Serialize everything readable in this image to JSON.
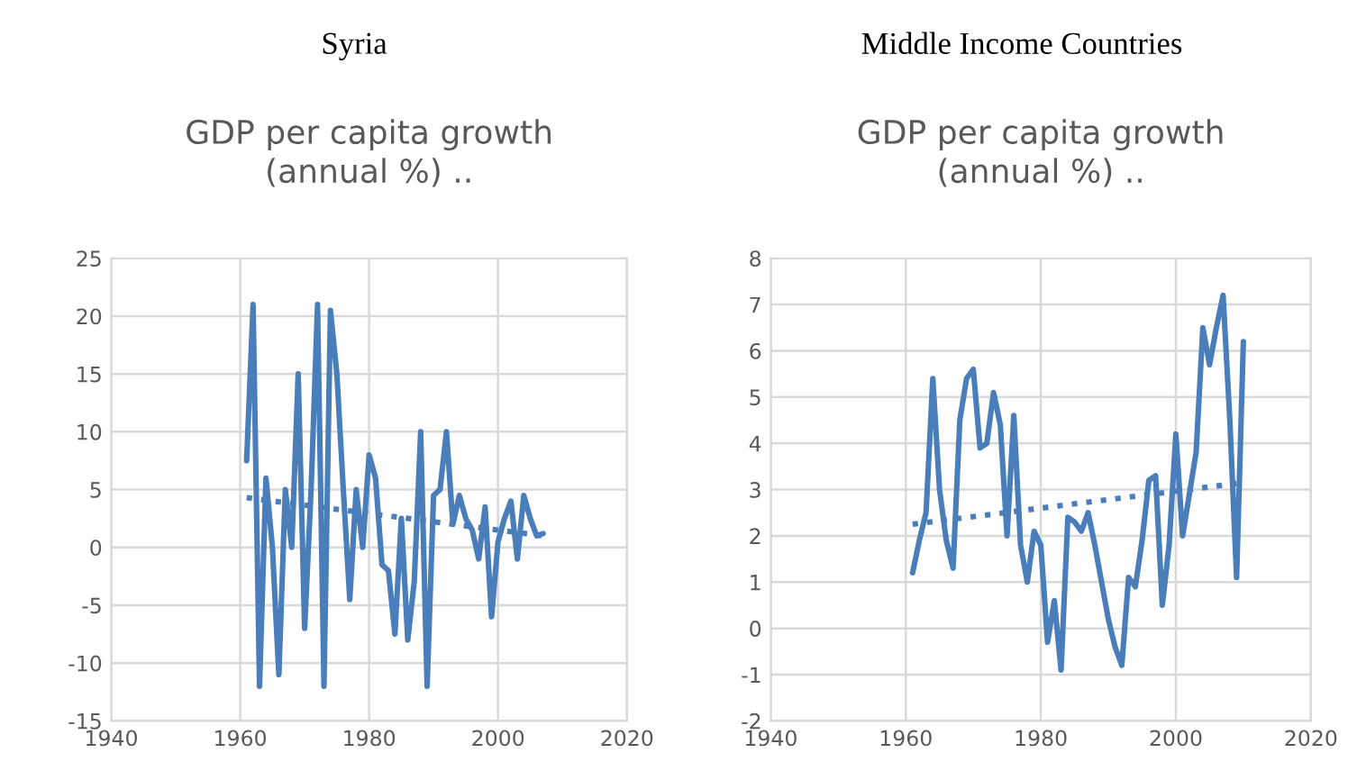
{
  "chart_data": [
    {
      "type": "line",
      "title": "GDP per capita growth\n(annual %) ..",
      "annotations": [
        "Syria"
      ],
      "xlim": [
        1940,
        2020
      ],
      "xticks": [
        1940,
        1960,
        1980,
        2000,
        2020
      ],
      "ylim": [
        -15,
        25
      ],
      "yticks": [
        -15,
        -10,
        -5,
        0,
        5,
        10,
        15,
        20,
        25
      ],
      "grid": true,
      "marker": "none",
      "series": [
        {
          "color": "#4a7ebb",
          "line_style": "solid",
          "x": [
            1961,
            1962,
            1963,
            1964,
            1965,
            1966,
            1967,
            1968,
            1969,
            1970,
            1971,
            1972,
            1973,
            1974,
            1975,
            1976,
            1977,
            1978,
            1979,
            1980,
            1981,
            1982,
            1983,
            1984,
            1985,
            1986,
            1987,
            1988,
            1989,
            1990,
            1991,
            1992,
            1993,
            1994,
            1995,
            1996,
            1997,
            1998,
            1999,
            2000,
            2001,
            2002,
            2003,
            2004,
            2005,
            2006,
            2007
          ],
          "values": [
            7.5,
            21,
            -12,
            6,
            0,
            -11,
            5,
            0,
            15,
            -7,
            5,
            21,
            -12,
            20.5,
            15,
            5,
            -4.5,
            5,
            0,
            8,
            6,
            -1.5,
            -2,
            -7.5,
            2.5,
            -8,
            -3,
            10,
            -12,
            4.5,
            5,
            10,
            2,
            4.5,
            2.5,
            1.5,
            -1,
            3.5,
            -6,
            0.5,
            2.5,
            4,
            -1,
            4.5,
            2.5,
            1,
            1.2
          ]
        },
        {
          "color": "#4a7ebb",
          "line_style": "dotted",
          "x": [
            1961,
            2007
          ],
          "values": [
            4.3,
            1.0
          ]
        }
      ]
    },
    {
      "type": "line",
      "title": "GDP per capita growth\n(annual %) ..",
      "annotations": [
        "Middle Income Countries"
      ],
      "xlim": [
        1940,
        2020
      ],
      "xticks": [
        1940,
        1960,
        1980,
        2000,
        2020
      ],
      "ylim": [
        -2,
        8
      ],
      "yticks": [
        -2,
        -1,
        0,
        1,
        2,
        3,
        4,
        5,
        6,
        7,
        8
      ],
      "grid": true,
      "marker": "none",
      "series": [
        {
          "color": "#4a7ebb",
          "line_style": "solid",
          "x": [
            1961,
            1962,
            1963,
            1964,
            1965,
            1966,
            1967,
            1968,
            1969,
            1970,
            1971,
            1972,
            1973,
            1974,
            1975,
            1976,
            1977,
            1978,
            1979,
            1980,
            1981,
            1982,
            1983,
            1984,
            1985,
            1986,
            1987,
            1988,
            1989,
            1990,
            1991,
            1992,
            1993,
            1994,
            1995,
            1996,
            1997,
            1998,
            1999,
            2000,
            2001,
            2002,
            2003,
            2004,
            2005,
            2006,
            2007,
            2008,
            2009,
            2010
          ],
          "values": [
            1.2,
            1.9,
            2.5,
            5.4,
            3,
            1.9,
            1.3,
            4.5,
            5.4,
            5.6,
            3.9,
            4,
            5.1,
            4.4,
            2,
            4.6,
            1.8,
            1,
            2.1,
            1.8,
            -0.3,
            0.6,
            -0.9,
            2.4,
            2.3,
            2.1,
            2.5,
            1.8,
            1,
            0.2,
            -0.4,
            -0.8,
            1.1,
            0.9,
            1.9,
            3.2,
            3.3,
            0.5,
            1.8,
            4.2,
            2,
            2.9,
            3.8,
            6.5,
            5.7,
            6.5,
            7.2,
            4.5,
            1.1,
            6.2
          ]
        },
        {
          "color": "#4a7ebb",
          "line_style": "dotted",
          "x": [
            1961,
            2010
          ],
          "values": [
            2.25,
            3.15
          ]
        }
      ]
    }
  ]
}
